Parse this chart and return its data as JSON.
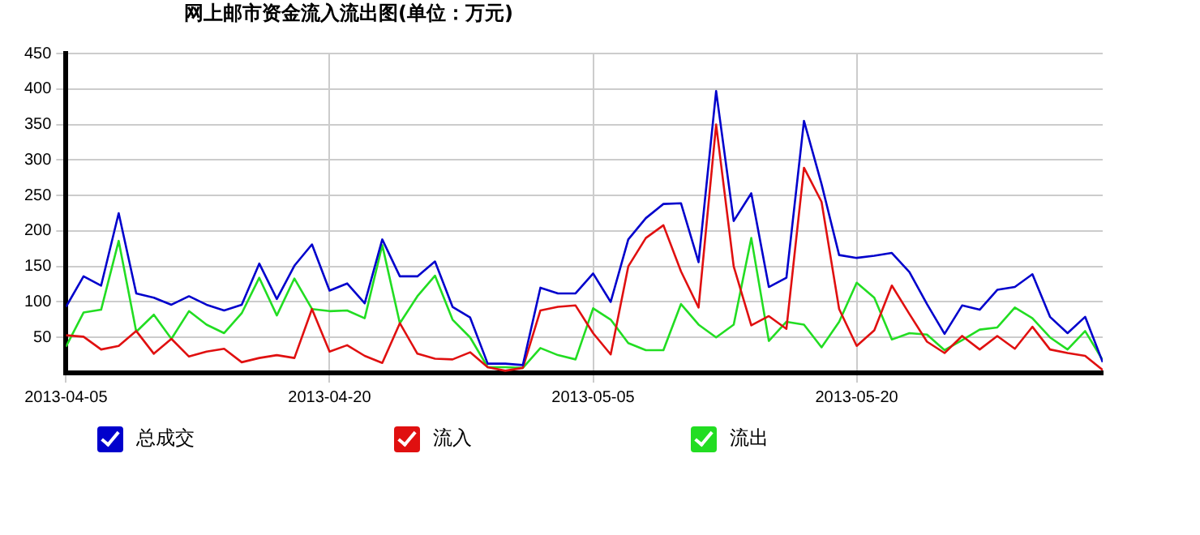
{
  "chart_data": {
    "type": "line",
    "title": "网上邮市资金流入流出图(单位：万元)",
    "x": [
      "2013-04-05",
      "2013-04-06",
      "2013-04-07",
      "2013-04-08",
      "2013-04-09",
      "2013-04-10",
      "2013-04-11",
      "2013-04-12",
      "2013-04-13",
      "2013-04-14",
      "2013-04-15",
      "2013-04-16",
      "2013-04-17",
      "2013-04-18",
      "2013-04-19",
      "2013-04-20",
      "2013-04-21",
      "2013-04-22",
      "2013-04-23",
      "2013-04-24",
      "2013-04-25",
      "2013-04-26",
      "2013-04-27",
      "2013-04-28",
      "2013-04-29",
      "2013-04-30",
      "2013-05-01",
      "2013-05-02",
      "2013-05-03",
      "2013-05-04",
      "2013-05-05",
      "2013-05-06",
      "2013-05-07",
      "2013-05-08",
      "2013-05-09",
      "2013-05-10",
      "2013-05-11",
      "2013-05-12",
      "2013-05-13",
      "2013-05-14",
      "2013-05-15",
      "2013-05-16",
      "2013-05-17",
      "2013-05-18",
      "2013-05-19",
      "2013-05-20",
      "2013-05-21",
      "2013-05-22",
      "2013-05-23",
      "2013-05-24",
      "2013-05-25",
      "2013-05-26",
      "2013-05-27",
      "2013-05-28",
      "2013-05-29",
      "2013-05-30",
      "2013-05-31",
      "2013-06-01",
      "2013-06-02",
      "2013-06-03"
    ],
    "series": [
      {
        "name": "总成交",
        "color": "#0000cc",
        "values": [
          93,
          136,
          123,
          225,
          112,
          106,
          96,
          108,
          96,
          88,
          96,
          154,
          104,
          151,
          181,
          116,
          126,
          98,
          188,
          136,
          136,
          157,
          93,
          78,
          13,
          13,
          11,
          120,
          112,
          112,
          140,
          100,
          188,
          218,
          238,
          239,
          156,
          397,
          214,
          253,
          121,
          134,
          355,
          266,
          166,
          162,
          165,
          169,
          142,
          97,
          55,
          95,
          89,
          117,
          121,
          139,
          79,
          56,
          79,
          15
        ]
      },
      {
        "name": "流入",
        "color": "#e01010",
        "values": [
          53,
          51,
          33,
          38,
          59,
          27,
          48,
          23,
          30,
          34,
          15,
          21,
          25,
          21,
          90,
          30,
          39,
          24,
          14,
          70,
          27,
          20,
          19,
          29,
          8,
          3,
          7,
          88,
          93,
          95,
          56,
          26,
          150,
          190,
          208,
          143,
          92,
          350,
          150,
          67,
          80,
          62,
          289,
          241,
          90,
          38,
          60,
          123,
          83,
          44,
          28,
          52,
          33,
          52,
          34,
          65,
          33,
          28,
          24,
          4
        ]
      },
      {
        "name": "流出",
        "color": "#22dd22",
        "values": [
          37,
          85,
          89,
          186,
          58,
          82,
          48,
          87,
          68,
          56,
          84,
          134,
          81,
          133,
          90,
          87,
          88,
          77,
          180,
          70,
          108,
          137,
          75,
          50,
          8,
          8,
          7,
          35,
          25,
          19,
          91,
          75,
          42,
          32,
          32,
          97,
          68,
          50,
          68,
          190,
          45,
          72,
          68,
          36,
          72,
          127,
          106,
          47,
          56,
          54,
          32,
          46,
          61,
          64,
          92,
          77,
          50,
          33,
          59,
          18
        ]
      }
    ],
    "xlim": [
      "2013-04-05",
      "2013-06-03"
    ],
    "xticks": [
      "2013-04-05",
      "2013-04-20",
      "2013-05-05",
      "2013-05-20"
    ],
    "ylim": [
      0,
      450
    ],
    "yticks": [
      50,
      100,
      150,
      200,
      250,
      300,
      350,
      400,
      450
    ],
    "grid": true,
    "legend": "bottom",
    "marker": "none",
    "line_style": "solid"
  }
}
